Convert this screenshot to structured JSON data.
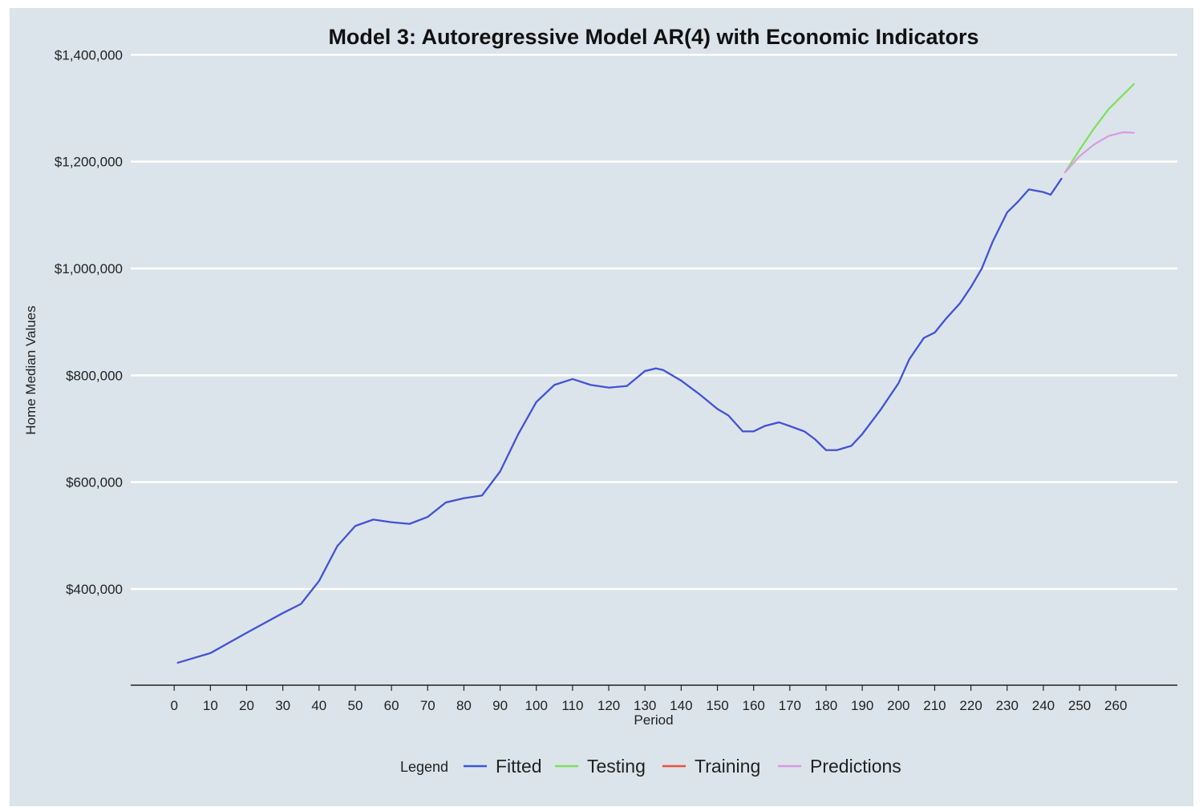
{
  "chart_data": {
    "type": "line",
    "title": "Model 3: Autoregressive Model AR(4) with Economic Indicators",
    "xlabel": "Period",
    "ylabel": "Home Median Values",
    "xlim": [
      -12,
      277
    ],
    "ylim": [
      220000,
      1420000
    ],
    "x_ticks": [
      0,
      10,
      20,
      30,
      40,
      50,
      60,
      70,
      80,
      90,
      100,
      110,
      120,
      130,
      140,
      150,
      160,
      170,
      180,
      190,
      200,
      210,
      220,
      230,
      240,
      250,
      260
    ],
    "y_ticks": [
      400000,
      600000,
      800000,
      1000000,
      1200000,
      1400000
    ],
    "y_tick_labels": [
      "$400,000",
      "$600,000",
      "$800,000",
      "$1,000,000",
      "$1,200,000",
      "$1,400,000"
    ],
    "grid": "horizontal",
    "legend": {
      "title": "Legend",
      "position": "bottom"
    },
    "series": [
      {
        "name": "Training",
        "color": "#e8513c",
        "points": [
          [
            1,
            262000
          ],
          [
            10,
            280000
          ],
          [
            20,
            318000
          ],
          [
            30,
            355000
          ],
          [
            35,
            372000
          ],
          [
            40,
            415000
          ],
          [
            45,
            480000
          ],
          [
            50,
            518000
          ],
          [
            55,
            530000
          ],
          [
            60,
            525000
          ],
          [
            65,
            522000
          ],
          [
            70,
            535000
          ],
          [
            75,
            562000
          ],
          [
            80,
            570000
          ],
          [
            85,
            575000
          ],
          [
            90,
            620000
          ],
          [
            95,
            690000
          ],
          [
            100,
            750000
          ],
          [
            105,
            782000
          ],
          [
            110,
            793000
          ],
          [
            115,
            782000
          ],
          [
            120,
            777000
          ],
          [
            125,
            780000
          ],
          [
            130,
            808000
          ],
          [
            133,
            813000
          ],
          [
            135,
            810000
          ],
          [
            140,
            790000
          ],
          [
            145,
            765000
          ],
          [
            150,
            737000
          ],
          [
            153,
            725000
          ],
          [
            157,
            695000
          ],
          [
            160,
            695000
          ],
          [
            163,
            705000
          ],
          [
            167,
            712000
          ],
          [
            170,
            705000
          ],
          [
            174,
            695000
          ],
          [
            177,
            680000
          ],
          [
            180,
            660000
          ],
          [
            183,
            660000
          ],
          [
            187,
            668000
          ],
          [
            190,
            690000
          ],
          [
            195,
            735000
          ],
          [
            200,
            785000
          ],
          [
            203,
            830000
          ],
          [
            207,
            870000
          ],
          [
            210,
            880000
          ],
          [
            213,
            905000
          ],
          [
            217,
            935000
          ],
          [
            220,
            965000
          ],
          [
            223,
            1000000
          ],
          [
            226,
            1050000
          ],
          [
            230,
            1105000
          ],
          [
            233,
            1125000
          ],
          [
            236,
            1148000
          ],
          [
            240,
            1143000
          ],
          [
            242,
            1138000
          ],
          [
            245,
            1168000
          ]
        ]
      },
      {
        "name": "Fitted",
        "color": "#3a55e0",
        "points": [
          [
            1,
            262000
          ],
          [
            10,
            280000
          ],
          [
            20,
            318000
          ],
          [
            30,
            355000
          ],
          [
            35,
            372000
          ],
          [
            40,
            415000
          ],
          [
            45,
            480000
          ],
          [
            50,
            518000
          ],
          [
            55,
            530000
          ],
          [
            60,
            525000
          ],
          [
            65,
            522000
          ],
          [
            70,
            535000
          ],
          [
            75,
            562000
          ],
          [
            80,
            570000
          ],
          [
            85,
            575000
          ],
          [
            90,
            620000
          ],
          [
            95,
            690000
          ],
          [
            100,
            750000
          ],
          [
            105,
            782000
          ],
          [
            110,
            793000
          ],
          [
            115,
            782000
          ],
          [
            120,
            777000
          ],
          [
            125,
            780000
          ],
          [
            130,
            808000
          ],
          [
            133,
            813000
          ],
          [
            135,
            810000
          ],
          [
            140,
            790000
          ],
          [
            145,
            765000
          ],
          [
            150,
            737000
          ],
          [
            153,
            725000
          ],
          [
            157,
            695000
          ],
          [
            160,
            695000
          ],
          [
            163,
            705000
          ],
          [
            167,
            712000
          ],
          [
            170,
            705000
          ],
          [
            174,
            695000
          ],
          [
            177,
            680000
          ],
          [
            180,
            660000
          ],
          [
            183,
            660000
          ],
          [
            187,
            668000
          ],
          [
            190,
            690000
          ],
          [
            195,
            735000
          ],
          [
            200,
            785000
          ],
          [
            203,
            830000
          ],
          [
            207,
            870000
          ],
          [
            210,
            880000
          ],
          [
            213,
            905000
          ],
          [
            217,
            935000
          ],
          [
            220,
            965000
          ],
          [
            223,
            1000000
          ],
          [
            226,
            1050000
          ],
          [
            230,
            1105000
          ],
          [
            233,
            1125000
          ],
          [
            236,
            1148000
          ],
          [
            240,
            1143000
          ],
          [
            242,
            1138000
          ],
          [
            245,
            1168000
          ]
        ]
      },
      {
        "name": "Testing",
        "color": "#7ee05a",
        "points": [
          [
            246,
            1180000
          ],
          [
            250,
            1222000
          ],
          [
            254,
            1262000
          ],
          [
            258,
            1298000
          ],
          [
            262,
            1325000
          ],
          [
            265,
            1345000
          ]
        ]
      },
      {
        "name": "Predictions",
        "color": "#d79be3",
        "points": [
          [
            246,
            1180000
          ],
          [
            250,
            1210000
          ],
          [
            254,
            1232000
          ],
          [
            258,
            1248000
          ],
          [
            262,
            1255000
          ],
          [
            265,
            1254000
          ]
        ]
      }
    ]
  },
  "legend_items": [
    {
      "label": "Fitted",
      "color": "#3a55e0"
    },
    {
      "label": "Testing",
      "color": "#7ee05a"
    },
    {
      "label": "Training",
      "color": "#e8513c"
    },
    {
      "label": "Predictions",
      "color": "#d79be3"
    }
  ]
}
